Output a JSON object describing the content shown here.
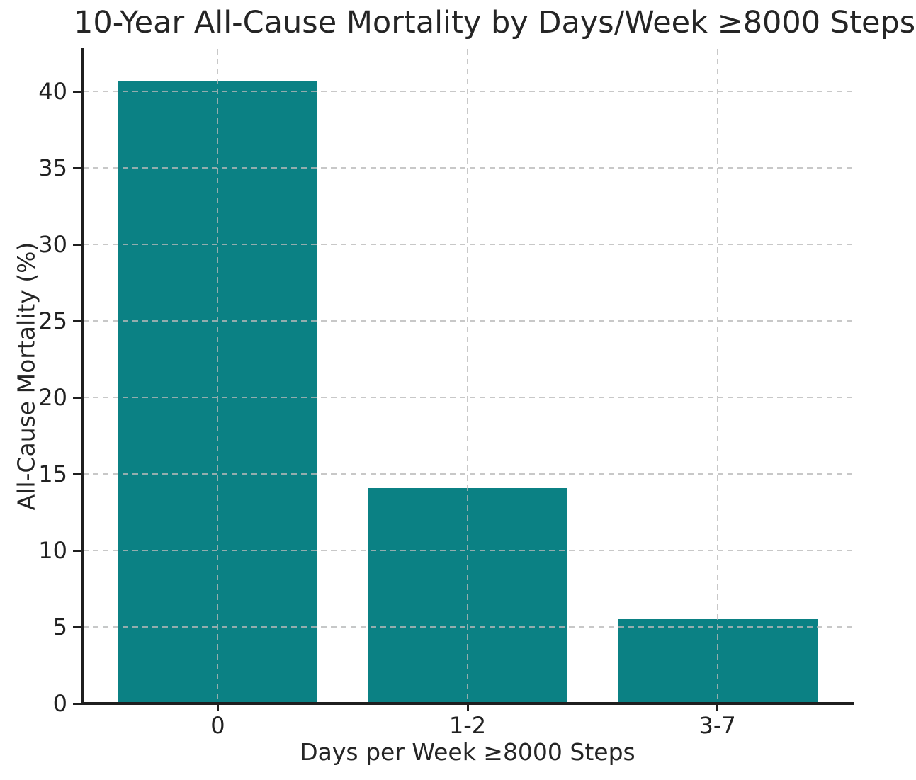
{
  "title": "10-Year All-Cause Mortality by Days/Week ≥8000 Steps",
  "chart_data": {
    "type": "bar",
    "title": "10-Year All-Cause Mortality by Days/Week ≥8000 Steps",
    "categories": [
      "0",
      "1-2",
      "3-7"
    ],
    "values": [
      40.7,
      14.1,
      5.5
    ],
    "xlabel": "Days per Week ≥8000 Steps",
    "ylabel": "All-Cause Mortality (%)",
    "yticks": [
      0,
      5,
      10,
      15,
      20,
      25,
      30,
      35,
      40
    ],
    "ylim": [
      0,
      42.8
    ],
    "grid": "dashed, both axes, drawn above bars",
    "legend": false,
    "bar_color": "#0b8184",
    "grid_color": "#c8c8c8",
    "axis_color": "#1f1f1f",
    "text_color": "#212121",
    "background_color": "#ffffff"
  }
}
